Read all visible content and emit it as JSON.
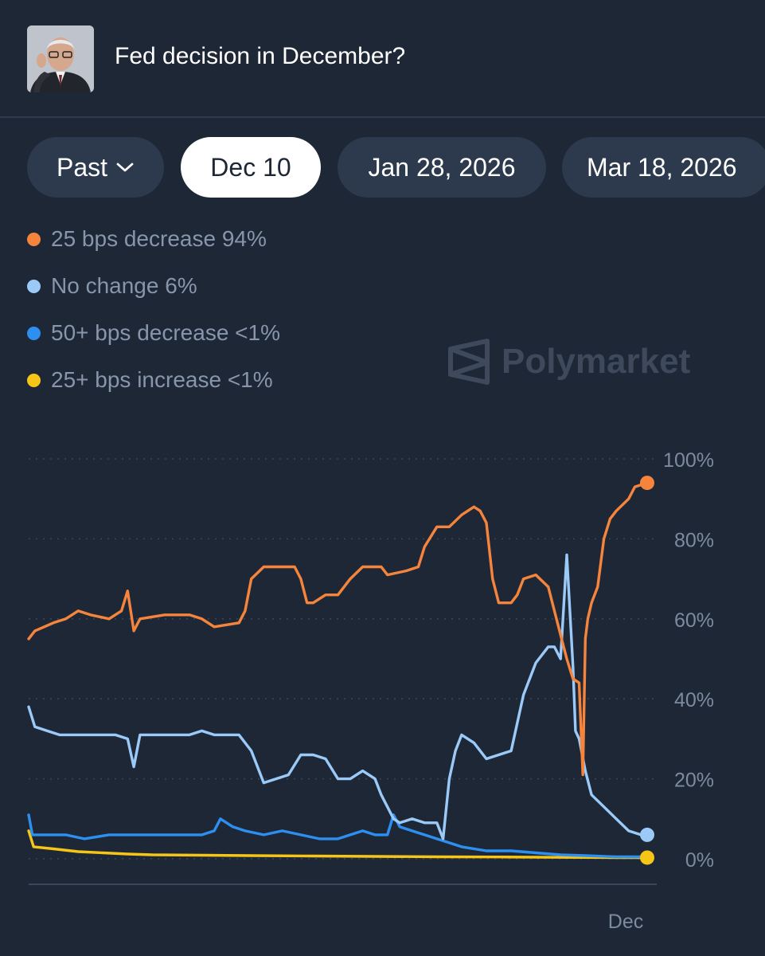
{
  "header": {
    "title": "Fed decision in December?",
    "avatar_icon": "person-portrait-icon"
  },
  "tabs": [
    {
      "label": "Past",
      "icon": "chevron-down-icon",
      "active": false
    },
    {
      "label": "Dec 10",
      "active": true
    },
    {
      "label": "Jan 28, 2026",
      "active": false
    },
    {
      "label": "Mar 18, 2026",
      "active": false
    }
  ],
  "legend": [
    {
      "label": "25 bps decrease 94%",
      "color": "#f5843c"
    },
    {
      "label": "No change 6%",
      "color": "#9ccaf8"
    },
    {
      "label": "50+ bps decrease <1%",
      "color": "#2d8ff0"
    },
    {
      "label": "25+ bps increase <1%",
      "color": "#f5c518"
    }
  ],
  "watermark": {
    "text": "Polymarket",
    "icon": "polymarket-logo-icon"
  },
  "chart_data": {
    "type": "line",
    "title": "",
    "xlabel": "",
    "ylabel": "",
    "x_ticks": [
      "Dec"
    ],
    "y_ticks": [
      "100%",
      "80%",
      "60%",
      "40%",
      "20%",
      "0%"
    ],
    "ylim": [
      0,
      100
    ],
    "grid": true,
    "series": [
      {
        "name": "25 bps decrease",
        "color": "#f5843c",
        "values": [
          [
            0,
            55
          ],
          [
            1,
            57
          ],
          [
            4,
            59
          ],
          [
            6,
            60
          ],
          [
            8,
            62
          ],
          [
            10,
            61
          ],
          [
            13,
            60
          ],
          [
            15,
            62
          ],
          [
            16,
            67
          ],
          [
            17,
            57
          ],
          [
            18,
            60
          ],
          [
            22,
            61
          ],
          [
            26,
            61
          ],
          [
            28,
            60
          ],
          [
            30,
            58
          ],
          [
            34,
            59
          ],
          [
            35,
            62
          ],
          [
            36,
            70
          ],
          [
            38,
            73
          ],
          [
            40,
            73
          ],
          [
            43,
            73
          ],
          [
            44,
            70
          ],
          [
            45,
            64
          ],
          [
            46,
            64
          ],
          [
            48,
            66
          ],
          [
            50,
            66
          ],
          [
            52,
            70
          ],
          [
            54,
            73
          ],
          [
            57,
            73
          ],
          [
            58,
            71
          ],
          [
            61,
            72
          ],
          [
            63,
            73
          ],
          [
            64,
            78
          ],
          [
            66,
            83
          ],
          [
            68,
            83
          ],
          [
            70,
            86
          ],
          [
            72,
            88
          ],
          [
            73,
            87
          ],
          [
            74,
            84
          ],
          [
            75,
            70
          ],
          [
            76,
            64
          ],
          [
            78,
            64
          ],
          [
            79,
            66
          ],
          [
            80,
            70
          ],
          [
            82,
            71
          ],
          [
            84,
            68
          ],
          [
            86,
            56
          ],
          [
            87,
            50
          ],
          [
            88,
            45
          ],
          [
            89,
            44
          ],
          [
            89.6,
            21
          ],
          [
            90,
            55
          ],
          [
            90.4,
            60
          ],
          [
            91,
            64
          ],
          [
            92,
            68
          ],
          [
            93,
            80
          ],
          [
            94,
            85
          ],
          [
            95,
            87
          ],
          [
            97,
            90
          ],
          [
            98,
            93
          ],
          [
            100,
            94
          ]
        ]
      },
      {
        "name": "No change",
        "color": "#9ccaf8",
        "values": [
          [
            0,
            38
          ],
          [
            1,
            33
          ],
          [
            3,
            32
          ],
          [
            5,
            31
          ],
          [
            8,
            31
          ],
          [
            10,
            31
          ],
          [
            14,
            31
          ],
          [
            16,
            30
          ],
          [
            17,
            23
          ],
          [
            18,
            31
          ],
          [
            22,
            31
          ],
          [
            26,
            31
          ],
          [
            28,
            32
          ],
          [
            30,
            31
          ],
          [
            32,
            31
          ],
          [
            34,
            31
          ],
          [
            36,
            27
          ],
          [
            38,
            19
          ],
          [
            40,
            20
          ],
          [
            42,
            21
          ],
          [
            44,
            26
          ],
          [
            46,
            26
          ],
          [
            48,
            25
          ],
          [
            50,
            20
          ],
          [
            52,
            20
          ],
          [
            54,
            22
          ],
          [
            56,
            20
          ],
          [
            57,
            16
          ],
          [
            59,
            10
          ],
          [
            60,
            9
          ],
          [
            62,
            10
          ],
          [
            64,
            9
          ],
          [
            66,
            9
          ],
          [
            67,
            5
          ],
          [
            68,
            20
          ],
          [
            69,
            27
          ],
          [
            70,
            31
          ],
          [
            72,
            29
          ],
          [
            74,
            25
          ],
          [
            76,
            26
          ],
          [
            78,
            27
          ],
          [
            80,
            41
          ],
          [
            82,
            49
          ],
          [
            84,
            53
          ],
          [
            85,
            53
          ],
          [
            86,
            50
          ],
          [
            87,
            76
          ],
          [
            88,
            48
          ],
          [
            88.4,
            32
          ],
          [
            89,
            30
          ],
          [
            90,
            22
          ],
          [
            91,
            16
          ],
          [
            93,
            13
          ],
          [
            95,
            10
          ],
          [
            97,
            7
          ],
          [
            99,
            6
          ],
          [
            100,
            6
          ]
        ]
      },
      {
        "name": "50+ bps decrease",
        "color": "#2d8ff0",
        "values": [
          [
            0,
            11
          ],
          [
            0.6,
            6
          ],
          [
            3,
            6
          ],
          [
            6,
            6
          ],
          [
            9,
            5
          ],
          [
            13,
            6
          ],
          [
            17,
            6
          ],
          [
            21,
            6
          ],
          [
            25,
            6
          ],
          [
            28,
            6
          ],
          [
            30,
            7
          ],
          [
            31,
            10
          ],
          [
            33,
            8
          ],
          [
            35,
            7
          ],
          [
            38,
            6
          ],
          [
            41,
            7
          ],
          [
            44,
            6
          ],
          [
            47,
            5
          ],
          [
            50,
            5
          ],
          [
            52,
            6
          ],
          [
            54,
            7
          ],
          [
            56,
            6
          ],
          [
            58,
            6
          ],
          [
            59,
            11
          ],
          [
            60,
            8
          ],
          [
            62,
            7
          ],
          [
            64,
            6
          ],
          [
            66,
            5
          ],
          [
            68,
            4
          ],
          [
            70,
            3
          ],
          [
            74,
            2
          ],
          [
            78,
            2
          ],
          [
            82,
            1.5
          ],
          [
            86,
            1
          ],
          [
            90,
            0.8
          ],
          [
            95,
            0.5
          ],
          [
            100,
            0.5
          ]
        ]
      },
      {
        "name": "25+ bps increase",
        "color": "#f5c518",
        "values": [
          [
            0,
            7
          ],
          [
            0.8,
            3
          ],
          [
            4,
            2.5
          ],
          [
            8,
            1.8
          ],
          [
            12,
            1.5
          ],
          [
            16,
            1.2
          ],
          [
            20,
            1
          ],
          [
            28,
            0.9
          ],
          [
            36,
            0.8
          ],
          [
            46,
            0.7
          ],
          [
            56,
            0.6
          ],
          [
            66,
            0.5
          ],
          [
            76,
            0.45
          ],
          [
            86,
            0.35
          ],
          [
            95,
            0.3
          ],
          [
            100,
            0.3
          ]
        ]
      }
    ]
  }
}
